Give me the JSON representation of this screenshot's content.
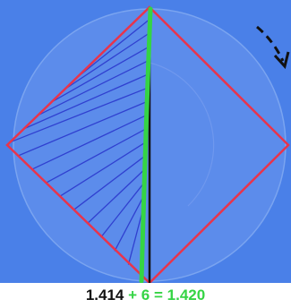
{
  "colors": {
    "background": "#4a80e8",
    "circle_fill": "#5c8ceb",
    "circle_stroke": "#7aa4f0",
    "square": "#e8344c",
    "hatch": "#3040d0",
    "diagonal": "#111111",
    "curve": "#35d444",
    "arrow": "#111111"
  },
  "caption": {
    "first": "1.414",
    "plus": "+",
    "second": "6",
    "equals": "=",
    "result": "1.420"
  }
}
